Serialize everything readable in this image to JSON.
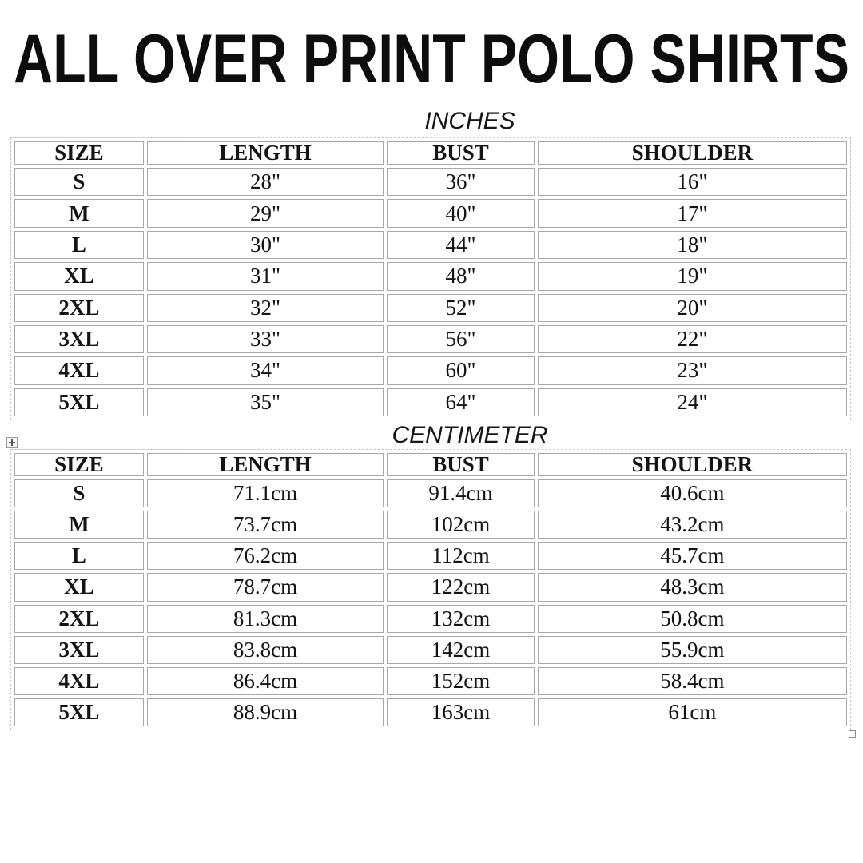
{
  "page": {
    "title": "ALL OVER PRINT POLO SHIRTS"
  },
  "colors": {
    "text": "#141414",
    "title": "#0d0d0d",
    "cell_border": "#a8a8a8",
    "table_outline_dashed": "#c6c6c6",
    "background": "#ffffff"
  },
  "icons": {
    "move_handle": "table-move-handle-icon",
    "resize_handle": "table-resize-handle-icon"
  },
  "tables": [
    {
      "unit_label": "INCHES",
      "columns": [
        "SIZE",
        "LENGTH",
        "BUST",
        "SHOULDER"
      ],
      "rows": [
        [
          "S",
          "28\"",
          "36\"",
          "16\""
        ],
        [
          "M",
          "29\"",
          "40\"",
          "17\""
        ],
        [
          "L",
          "30\"",
          "44\"",
          "18\""
        ],
        [
          "XL",
          "31\"",
          "48\"",
          "19\""
        ],
        [
          "2XL",
          "32\"",
          "52\"",
          "20\""
        ],
        [
          "3XL",
          "33\"",
          "56\"",
          "22\""
        ],
        [
          "4XL",
          "34\"",
          "60\"",
          "23\""
        ],
        [
          "5XL",
          "35\"",
          "64\"",
          "24\""
        ]
      ]
    },
    {
      "unit_label": "CENTIMETER",
      "columns": [
        "SIZE",
        "LENGTH",
        "BUST",
        "SHOULDER"
      ],
      "rows": [
        [
          "S",
          "71.1cm",
          "91.4cm",
          "40.6cm"
        ],
        [
          "M",
          "73.7cm",
          "102cm",
          "43.2cm"
        ],
        [
          "L",
          "76.2cm",
          "112cm",
          "45.7cm"
        ],
        [
          "XL",
          "78.7cm",
          "122cm",
          "48.3cm"
        ],
        [
          "2XL",
          "81.3cm",
          "132cm",
          "50.8cm"
        ],
        [
          "3XL",
          "83.8cm",
          "142cm",
          "55.9cm"
        ],
        [
          "4XL",
          "86.4cm",
          "152cm",
          "58.4cm"
        ],
        [
          "5XL",
          "88.9cm",
          "163cm",
          "61cm"
        ]
      ]
    }
  ]
}
